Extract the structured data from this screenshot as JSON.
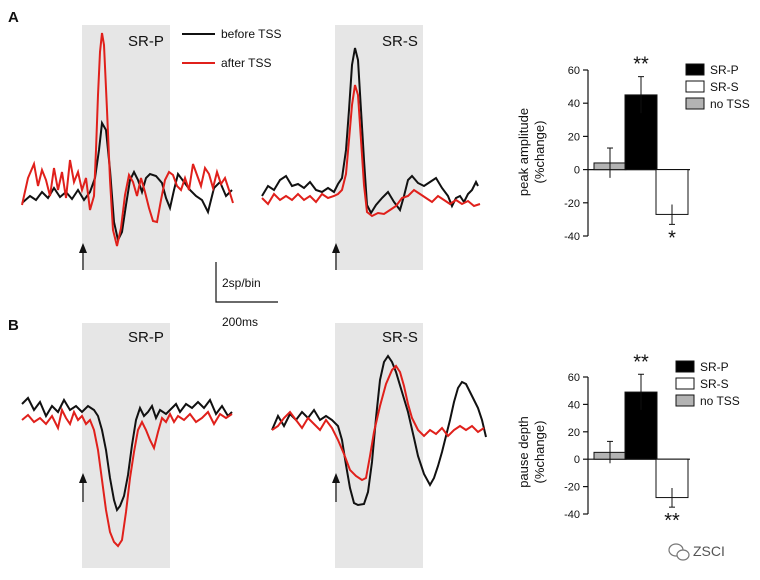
{
  "panels": {
    "A": {
      "letter": "A",
      "region_left": "SR-P",
      "region_right": "SR-S",
      "legend": {
        "before": "before TSS",
        "after": "after TSS"
      },
      "scale_bar": {
        "y": "2sp/bin",
        "x": "200ms"
      }
    },
    "B": {
      "letter": "B",
      "region_left": "SR-P",
      "region_right": "SR-S"
    }
  },
  "colors": {
    "before": "#111111",
    "after": "#e0201b",
    "shade": "#e6e6e6",
    "bar_srp": "#000000",
    "bar_srs": "#ffffff",
    "bar_notss": "#b3b3b3"
  },
  "watermark": "ZSCI",
  "chart_data": [
    {
      "type": "bar",
      "panel": "A",
      "ylabel_line1": "peak amplitude",
      "ylabel_line2": "(%change)",
      "ylim": [
        -40,
        60
      ],
      "yticks": [
        "60",
        "40",
        "20",
        "0",
        "-20",
        "-40"
      ],
      "categories": [
        "SR-P",
        "SR-S",
        "no TSS"
      ],
      "legend": [
        "SR-P",
        "SR-S",
        "no TSS"
      ],
      "values": {
        "no TSS": 4,
        "SR-P": 45,
        "SR-S": -27
      },
      "errors": {
        "no TSS": 9,
        "SR-P": 11,
        "SR-S": 6
      },
      "significance": {
        "SR-P": "**",
        "SR-S": "*"
      }
    },
    {
      "type": "bar",
      "panel": "B",
      "ylabel_line1": "pause depth",
      "ylabel_line2": "(%change)",
      "ylim": [
        -40,
        60
      ],
      "yticks": [
        "60",
        "40",
        "20",
        "0",
        "-20",
        "-40"
      ],
      "categories": [
        "SR-P",
        "SR-S",
        "no TSS"
      ],
      "legend": [
        "SR-P",
        "SR-S",
        "no TSS"
      ],
      "values": {
        "no TSS": 5,
        "SR-P": 49,
        "SR-S": -28
      },
      "errors": {
        "no TSS": 8,
        "SR-P": 13,
        "SR-S": 7
      },
      "significance": {
        "SR-P": "**",
        "SR-S": "**"
      }
    }
  ]
}
